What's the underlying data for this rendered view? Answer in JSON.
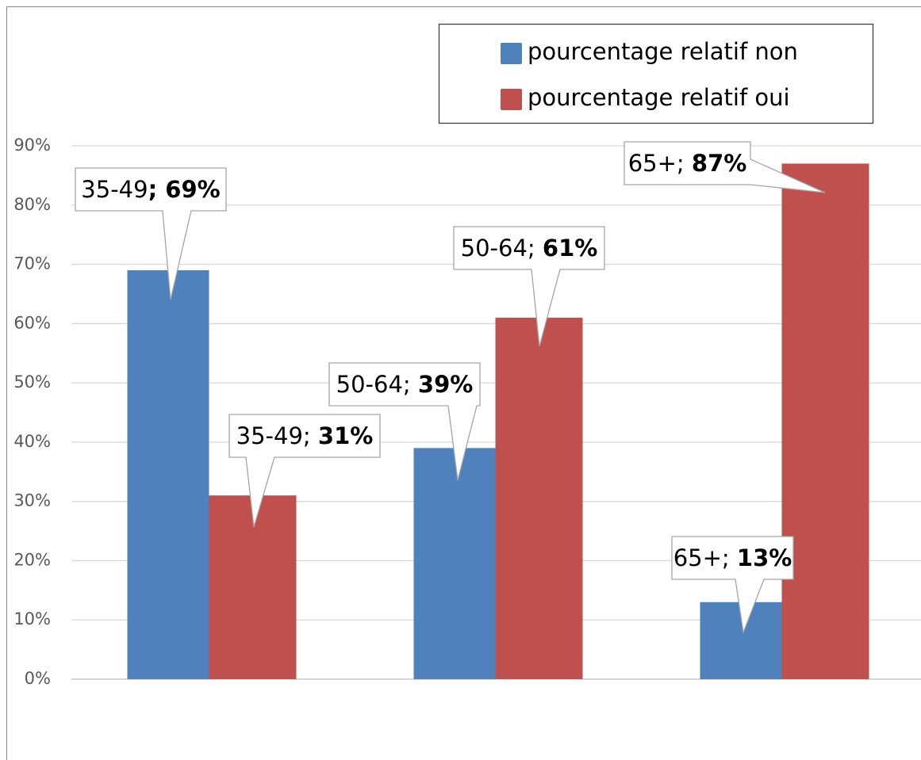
{
  "chart_data": {
    "type": "bar",
    "categories": [
      "35-49",
      "50-64",
      "65+"
    ],
    "series": [
      {
        "name": "pourcentage relatif non",
        "color": "#4f81bd",
        "values": [
          69,
          39,
          13
        ],
        "value_labels": [
          "69%",
          "39%",
          "13%"
        ]
      },
      {
        "name": "pourcentage relatif oui",
        "color": "#c0504d",
        "values": [
          31,
          61,
          87
        ],
        "value_labels": [
          "31%",
          "61%",
          "87%"
        ]
      }
    ],
    "label_separator": "; ",
    "ylim": [
      0,
      90
    ],
    "yticks": [
      {
        "value": 0,
        "label": "0%"
      },
      {
        "value": 10,
        "label": "10%"
      },
      {
        "value": 20,
        "label": "20%"
      },
      {
        "value": 30,
        "label": "30%"
      },
      {
        "value": 40,
        "label": "40%"
      },
      {
        "value": 50,
        "label": "50%"
      },
      {
        "value": 60,
        "label": "60%"
      },
      {
        "value": 70,
        "label": "70%"
      },
      {
        "value": 80,
        "label": "80%"
      },
      {
        "value": 90,
        "label": "90%"
      }
    ],
    "grid": true,
    "legend": "top-right"
  }
}
